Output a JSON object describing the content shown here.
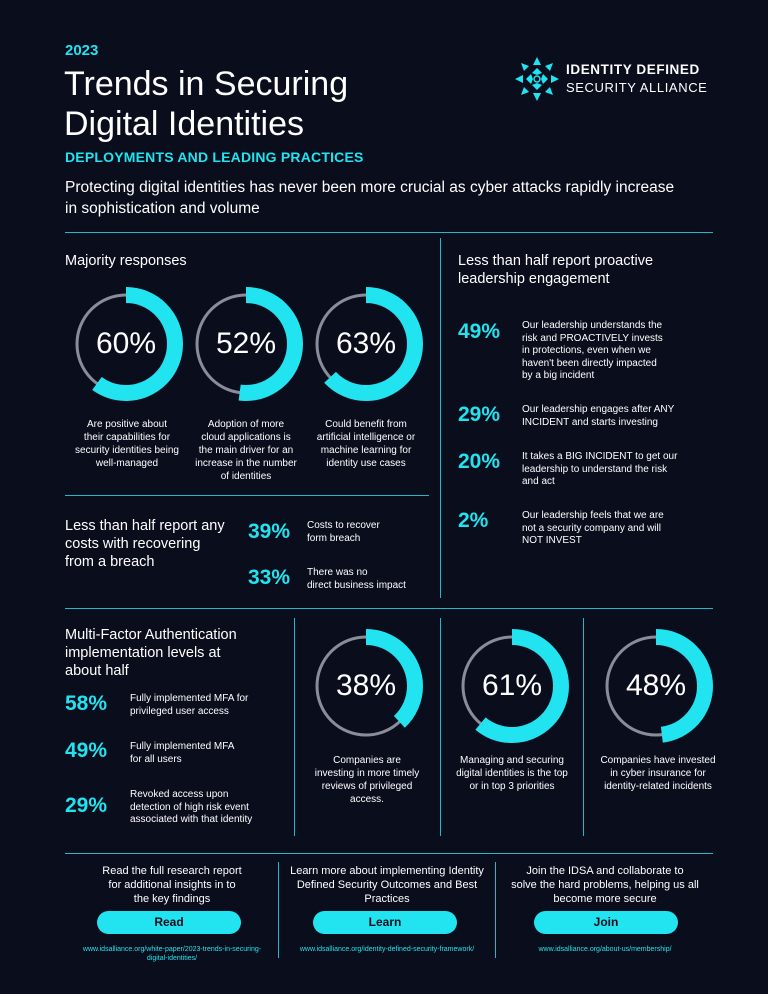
{
  "header": {
    "year": "2023",
    "title_line1": "Trends in Securing",
    "title_line2": "Digital Identities",
    "subtitle": "DEPLOYMENTS AND LEADING PRACTICES",
    "intro": "Protecting digital identities has never been more crucial as cyber attacks rapidly increase in sophistication and volume"
  },
  "logo": {
    "line1": "IDENTITY DEFINED",
    "line2": "SECURITY ALLIANCE",
    "icon": "idsa-logo-icon"
  },
  "majority": {
    "title": "Majority responses",
    "items": [
      {
        "pct": "60%",
        "value": 60,
        "caption": [
          "Are positive about",
          "their capabilities for",
          "security identities being",
          "well-managed"
        ]
      },
      {
        "pct": "52%",
        "value": 52,
        "caption": [
          "Adoption of more",
          "cloud applications is",
          "the main driver for an",
          "increase in the number",
          "of identities"
        ]
      },
      {
        "pct": "63%",
        "value": 63,
        "caption": [
          "Could benefit from",
          "artificial intelligence or",
          "machine learning for",
          "identity use cases"
        ]
      }
    ]
  },
  "breach": {
    "title": [
      "Less than half report any",
      "costs with recovering",
      "from a breach"
    ],
    "items": [
      {
        "pct": "39%",
        "text": [
          "Costs to recover",
          "form breach"
        ]
      },
      {
        "pct": "33%",
        "text": [
          "There was no",
          "direct business impact"
        ]
      }
    ]
  },
  "leadership": {
    "title": [
      "Less than half report proactive",
      "leadership engagement"
    ],
    "items": [
      {
        "pct": "49%",
        "text": [
          "Our leadership understands the",
          "risk and PROACTIVELY invests",
          "in protections, even when we",
          "haven't been directly impacted",
          "by a big incident"
        ]
      },
      {
        "pct": "29%",
        "text": [
          "Our leadership engages after ANY",
          "INCIDENT and starts investing"
        ]
      },
      {
        "pct": "20%",
        "text": [
          "It takes a BIG INCIDENT to get our",
          "leadership to understand the risk",
          "and act"
        ]
      },
      {
        "pct": "2%",
        "text": [
          "Our leadership feels that we are",
          "not a security company and will",
          "NOT INVEST"
        ]
      }
    ]
  },
  "mfa": {
    "title": [
      "Multi-Factor Authentication",
      "implementation levels at",
      "about half"
    ],
    "items": [
      {
        "pct": "58%",
        "text": [
          "Fully implemented MFA for",
          "privileged user access"
        ]
      },
      {
        "pct": "49%",
        "text": [
          "Fully implemented MFA",
          "for all users"
        ]
      },
      {
        "pct": "29%",
        "text": [
          "Revoked access upon",
          "detection of high risk event",
          "associated with that identity"
        ]
      }
    ]
  },
  "bottom_donuts": [
    {
      "pct": "38%",
      "value": 38,
      "caption": [
        "Companies are",
        "investing in more timely",
        "reviews of privileged",
        "access."
      ]
    },
    {
      "pct": "61%",
      "value": 61,
      "caption": [
        "Managing and securing",
        "digital identities is the top",
        "or in top 3 priorities"
      ]
    },
    {
      "pct": "48%",
      "value": 48,
      "caption": [
        "Companies have invested",
        "in cyber insurance for",
        "identity-related incidents"
      ]
    }
  ],
  "cta": [
    {
      "text": [
        "Read the full research report",
        "for additional insights in to",
        "the key findings"
      ],
      "button": "Read",
      "url": [
        "www.idsalliance.org/white-paper/2023-trends-in-securing-",
        "digital-identities/"
      ]
    },
    {
      "text": [
        "Learn more about implementing Identity",
        "Defined Security Outcomes and Best",
        "Practices"
      ],
      "button": "Learn",
      "url": [
        "www.idsalliance.org/identity-defined-security-framework/"
      ]
    },
    {
      "text": [
        "Join the IDSA and collaborate to",
        "solve the hard problems, helping us all",
        "become more secure"
      ],
      "button": "Join",
      "url": [
        "www.idsalliance.org/about-us/membership/"
      ]
    }
  ],
  "colors": {
    "background": "#0a0d1c",
    "accent": "#22e3f0",
    "ring_track": "#8a8d99",
    "divider": "#1fb9c9"
  }
}
